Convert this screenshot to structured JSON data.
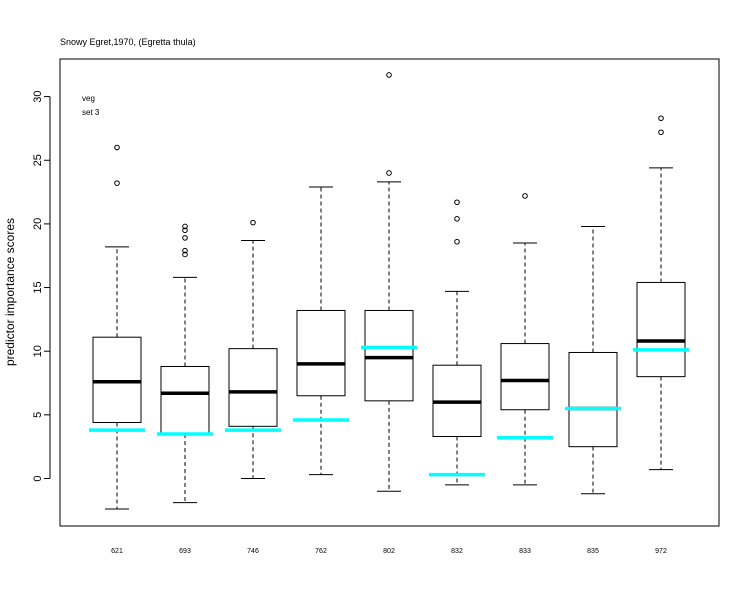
{
  "chart_data": {
    "type": "boxplot",
    "title": "Snowy Egret,1970, (Egretta thula)",
    "xlabel": "",
    "ylabel": "predictor importance scores",
    "ylim": [
      -3.7,
      33
    ],
    "y_ticks": [
      0,
      5,
      10,
      15,
      20,
      25,
      30
    ],
    "categories": [
      "621",
      "693",
      "746",
      "762",
      "802",
      "832",
      "833",
      "835",
      "972"
    ],
    "legend": {
      "lines": [
        "veg",
        "set 3"
      ],
      "color": "#0000ff",
      "placement": "top-left"
    },
    "series": [
      {
        "boxes": [
          {
            "category": "621",
            "whisker_low": -2.4,
            "q1": 4.4,
            "median": 7.6,
            "q3": 11.1,
            "whisker_high": 18.2,
            "outliers": [
              23.2,
              26.0
            ]
          },
          {
            "category": "693",
            "whisker_low": -1.9,
            "q1": 3.5,
            "median": 6.7,
            "q3": 8.8,
            "whisker_high": 15.8,
            "outliers": [
              17.6,
              17.9,
              18.9,
              19.5,
              19.8
            ]
          },
          {
            "category": "746",
            "whisker_low": 0.0,
            "q1": 4.1,
            "median": 6.8,
            "q3": 10.2,
            "whisker_high": 18.7,
            "outliers": [
              20.1
            ]
          },
          {
            "category": "762",
            "whisker_low": 0.3,
            "q1": 6.5,
            "median": 9.0,
            "q3": 13.2,
            "whisker_high": 22.9,
            "outliers": []
          },
          {
            "category": "802",
            "whisker_low": -1.0,
            "q1": 6.1,
            "median": 9.5,
            "q3": 13.2,
            "whisker_high": 23.3,
            "outliers": [
              24.0,
              31.7
            ]
          },
          {
            "category": "832",
            "whisker_low": -0.5,
            "q1": 3.3,
            "median": 6.0,
            "q3": 8.9,
            "whisker_high": 14.7,
            "outliers": [
              18.6,
              20.4,
              21.7
            ]
          },
          {
            "category": "833",
            "whisker_low": -0.5,
            "q1": 5.4,
            "median": 7.7,
            "q3": 10.6,
            "whisker_high": 18.5,
            "outliers": [
              22.2
            ]
          },
          {
            "category": "835",
            "whisker_low": -1.2,
            "q1": 2.5,
            "median": 5.5,
            "q3": 9.9,
            "whisker_high": 19.8,
            "outliers": []
          },
          {
            "category": "972",
            "whisker_low": 0.7,
            "q1": 8.0,
            "median": 10.8,
            "q3": 15.4,
            "whisker_high": 24.4,
            "outliers": [
              27.2,
              28.3
            ]
          }
        ]
      },
      {
        "color": "#00ffff",
        "values": [
          3.8,
          3.5,
          3.8,
          4.6,
          10.3,
          0.3,
          3.2,
          5.5,
          10.1
        ]
      }
    ],
    "grid": false
  },
  "colors": {
    "box": "#000000",
    "reference_line": "#00ffff",
    "legend_text": "#0000ff"
  }
}
